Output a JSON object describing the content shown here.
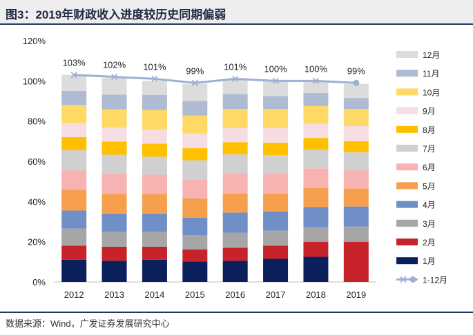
{
  "title": "图3：2019年财政收入进度较历史同期偏弱",
  "source": "数据来源：Wind，广发证券发展研究中心",
  "chart_data": {
    "type": "bar",
    "stacked": true,
    "categories": [
      "2012",
      "2013",
      "2014",
      "2015",
      "2016",
      "2017",
      "2018",
      "2019"
    ],
    "ylim": [
      0,
      120
    ],
    "yticks": [
      0,
      20,
      40,
      60,
      80,
      100,
      120
    ],
    "ytick_labels": [
      "0%",
      "20%",
      "40%",
      "60%",
      "80%",
      "100%",
      "120%"
    ],
    "series": [
      {
        "name": "1月",
        "color": "#0b1f5c",
        "values": [
          11,
          10.5,
          11,
          10.2,
          10.5,
          11.5,
          12.5,
          0
        ]
      },
      {
        "name": "2月",
        "color": "#c8222b",
        "values": [
          7,
          7,
          6.5,
          6,
          6.5,
          6.5,
          7.5,
          20
        ]
      },
      {
        "name": "3月",
        "color": "#a6a6a6",
        "values": [
          8.5,
          7.5,
          7.5,
          7,
          7.5,
          7.5,
          7.2,
          7.5
        ]
      },
      {
        "name": "4月",
        "color": "#6f8fc6",
        "values": [
          9,
          9,
          9,
          8.8,
          10,
          9.5,
          10,
          10
        ]
      },
      {
        "name": "5月",
        "color": "#f6a04d",
        "values": [
          10.5,
          9.8,
          9.8,
          9.5,
          9.5,
          9,
          9.5,
          9
        ]
      },
      {
        "name": "6月",
        "color": "#f7b2b2",
        "values": [
          9.5,
          10,
          9.5,
          9.5,
          10,
          10,
          9.8,
          9
        ]
      },
      {
        "name": "7月",
        "color": "#d0d0d0",
        "values": [
          10,
          9.5,
          9,
          9.5,
          9.5,
          9,
          9.3,
          9
        ]
      },
      {
        "name": "8月",
        "color": "#ffc000",
        "values": [
          6.5,
          6.5,
          6.5,
          6,
          6,
          6.2,
          5.8,
          5.5
        ]
      },
      {
        "name": "9月",
        "color": "#f6dde2",
        "values": [
          7,
          7,
          7,
          7.3,
          7,
          7.3,
          7.1,
          7.5
        ]
      },
      {
        "name": "10月",
        "color": "#ffd966",
        "values": [
          9,
          9,
          9.7,
          9,
          9.5,
          9.5,
          8.8,
          8.5
        ]
      },
      {
        "name": "11月",
        "color": "#aebbd2",
        "values": [
          7,
          7.3,
          7.5,
          7.2,
          7.5,
          6.5,
          6.5,
          5.5
        ]
      },
      {
        "name": "12月",
        "color": "#dcdcdc",
        "values": [
          8,
          8.4,
          7,
          8.5,
          7.5,
          7.5,
          6,
          7
        ]
      }
    ],
    "line": {
      "name": "1-12月",
      "color": "#9dafd6",
      "values": [
        103,
        102,
        101,
        99,
        101,
        100,
        100,
        99
      ],
      "labels": [
        "103%",
        "102%",
        "101%",
        "99%",
        "101%",
        "100%",
        "100%",
        "99%"
      ]
    },
    "legend_position": "right"
  }
}
